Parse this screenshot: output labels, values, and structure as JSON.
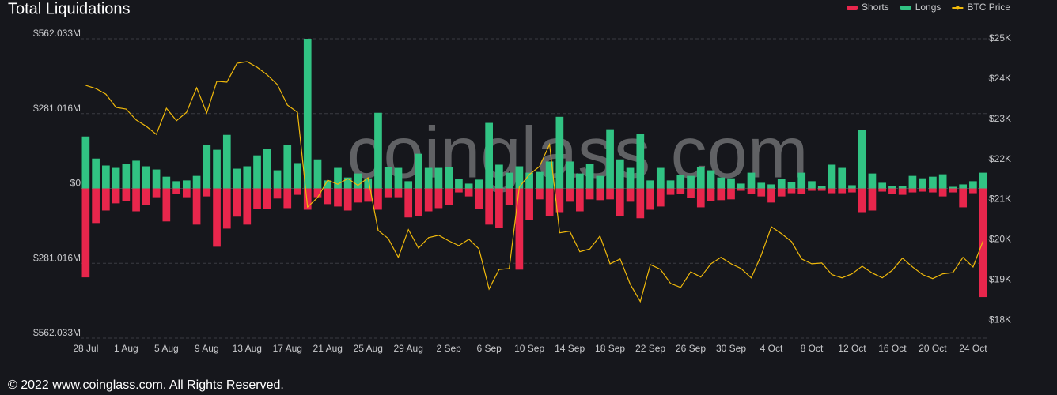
{
  "chart_data": {
    "type": "bar",
    "title": "Total Liquidations",
    "footer": "© 2022 www.coinglass.com. All Rights Reserved.",
    "watermark": "coinglass.com",
    "categories": [
      "28 Jul",
      null,
      null,
      null,
      "1 Aug",
      null,
      null,
      null,
      "5 Aug",
      null,
      null,
      null,
      "9 Aug",
      null,
      null,
      null,
      "13 Aug",
      null,
      null,
      null,
      "17 Aug",
      null,
      null,
      null,
      "21 Aug",
      null,
      null,
      null,
      "25 Aug",
      null,
      null,
      null,
      "29 Aug",
      null,
      null,
      null,
      "2 Sep",
      null,
      null,
      null,
      "6 Sep",
      null,
      null,
      null,
      "10 Sep",
      null,
      null,
      null,
      "14 Sep",
      null,
      null,
      null,
      "18 Sep",
      null,
      null,
      null,
      "22 Sep",
      null,
      null,
      null,
      "26 Sep",
      null,
      null,
      null,
      "30 Sep",
      null,
      null,
      null,
      "4 Oct",
      null,
      null,
      null,
      "8 Oct",
      null,
      null,
      null,
      "12 Oct",
      null,
      null,
      null,
      "16 Oct",
      null,
      null,
      null,
      "20 Oct",
      null,
      null,
      null,
      "24 Oct",
      null
    ],
    "series": [
      {
        "name": "Shorts",
        "color": "#e8264c",
        "values": [
          -334,
          -130,
          -83,
          -56,
          -47,
          -86,
          -62,
          -33,
          -124,
          -21,
          -33,
          -136,
          -30,
          -219,
          -151,
          -106,
          -136,
          -77,
          -77,
          -38,
          -74,
          -24,
          -80,
          -33,
          -59,
          -68,
          -83,
          -53,
          -50,
          -80,
          -33,
          -33,
          -109,
          -104,
          -86,
          -74,
          -62,
          -15,
          -30,
          -77,
          -136,
          -148,
          -62,
          -305,
          -118,
          -41,
          -104,
          -89,
          -50,
          -86,
          -41,
          -44,
          -41,
          -104,
          -50,
          -112,
          -80,
          -68,
          -24,
          -21,
          -35,
          -71,
          -47,
          -44,
          -41,
          -9,
          -21,
          -30,
          -53,
          -30,
          -18,
          -21,
          -9,
          -9,
          -18,
          -18,
          -15,
          -89,
          -83,
          -12,
          -21,
          -24,
          -15,
          -12,
          -15,
          -30,
          -15,
          -71,
          -18,
          -408
        ]
      },
      {
        "name": "Longs",
        "color": "#31c383",
        "values": [
          195,
          112,
          86,
          77,
          92,
          104,
          83,
          71,
          44,
          27,
          30,
          47,
          163,
          145,
          201,
          74,
          83,
          124,
          148,
          68,
          163,
          95,
          562,
          109,
          30,
          77,
          41,
          56,
          38,
          284,
          80,
          77,
          27,
          130,
          77,
          77,
          80,
          35,
          18,
          33,
          246,
          89,
          59,
          83,
          59,
          62,
          101,
          269,
          101,
          56,
          92,
          47,
          222,
          109,
          77,
          204,
          30,
          77,
          30,
          50,
          47,
          80,
          68,
          41,
          38,
          18,
          59,
          21,
          15,
          35,
          24,
          59,
          27,
          9,
          89,
          77,
          12,
          219,
          56,
          21,
          9,
          9,
          47,
          38,
          44,
          53,
          6,
          15,
          27,
          59
        ]
      },
      {
        "name": "BTC Price",
        "color": "#f0b90b",
        "axis": "y2",
        "type": "line",
        "values": [
          23.84,
          23.76,
          23.62,
          23.29,
          23.25,
          22.98,
          22.82,
          22.62,
          23.27,
          22.96,
          23.17,
          23.78,
          23.15,
          23.94,
          23.92,
          24.39,
          24.43,
          24.29,
          24.1,
          23.86,
          23.35,
          23.17,
          20.81,
          21.05,
          21.48,
          21.38,
          21.52,
          21.35,
          21.54,
          20.23,
          20.03,
          19.56,
          20.25,
          19.79,
          20.05,
          20.11,
          19.97,
          19.85,
          20.01,
          19.77,
          18.77,
          19.26,
          19.28,
          21.31,
          21.62,
          21.82,
          22.37,
          20.17,
          20.21,
          19.7,
          19.77,
          20.09,
          19.4,
          19.52,
          18.89,
          18.46,
          19.38,
          19.26,
          18.91,
          18.81,
          19.2,
          19.07,
          19.4,
          19.56,
          19.4,
          19.28,
          19.05,
          19.62,
          20.32,
          20.15,
          19.95,
          19.52,
          19.4,
          19.42,
          19.13,
          19.05,
          19.15,
          19.34,
          19.17,
          19.05,
          19.24,
          19.54,
          19.32,
          19.13,
          19.03,
          19.15,
          19.18,
          19.56,
          19.32,
          19.97
        ]
      }
    ],
    "ylim": [
      -562.033,
      562.033
    ],
    "yticks": [
      {
        "value": -562.033,
        "label": "$562.033M"
      },
      {
        "value": -281.016,
        "label": "$281.016M"
      },
      {
        "value": 0,
        "label": "$0"
      },
      {
        "value": 281.016,
        "label": "$281.016M"
      },
      {
        "value": 562.033,
        "label": "$562.033M"
      }
    ],
    "y2lim": [
      17.55,
      25
    ],
    "y2ticks": [
      {
        "value": 18,
        "label": "$18K"
      },
      {
        "value": 19,
        "label": "$19K"
      },
      {
        "value": 20,
        "label": "$20K"
      },
      {
        "value": 21,
        "label": "$21K"
      },
      {
        "value": 22,
        "label": "$22K"
      },
      {
        "value": 23,
        "label": "$23K"
      },
      {
        "value": 24,
        "label": "$24K"
      },
      {
        "value": 25,
        "label": "$25K"
      }
    ],
    "grid": true,
    "legend": "top-right"
  }
}
